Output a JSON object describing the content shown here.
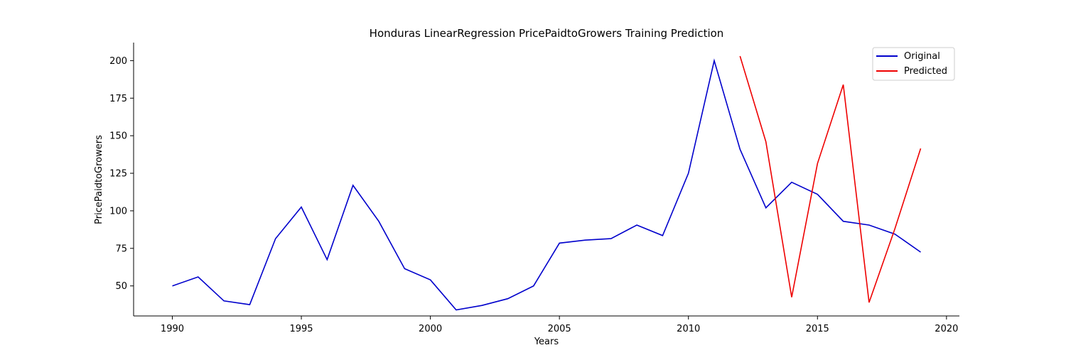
{
  "chart_data": {
    "type": "line",
    "title": "Honduras LinearRegression PricePaidtoGrowers Training Prediction",
    "xlabel": "Years",
    "ylabel": "PricePaidtoGrowers",
    "xlim": [
      1988.5,
      2020.5
    ],
    "ylim": [
      30,
      212
    ],
    "xticks": [
      1990,
      1995,
      2000,
      2005,
      2010,
      2015,
      2020
    ],
    "yticks": [
      50,
      75,
      100,
      125,
      150,
      175,
      200
    ],
    "grid": false,
    "legend_position": "top-right",
    "series": [
      {
        "name": "Original",
        "color": "#0000cc",
        "x": [
          1990,
          1991,
          1992,
          1993,
          1994,
          1995,
          1996,
          1997,
          1998,
          1999,
          2000,
          2001,
          2002,
          2003,
          2004,
          2005,
          2006,
          2007,
          2008,
          2009,
          2010,
          2011,
          2012,
          2013,
          2014,
          2015,
          2016,
          2017,
          2018,
          2019
        ],
        "y": [
          50,
          56,
          40,
          37.5,
          81.5,
          102.5,
          67.5,
          117,
          93,
          61.5,
          54,
          34,
          37,
          41.5,
          50,
          78.5,
          80.5,
          81.5,
          90.5,
          83.5,
          125,
          200,
          141,
          102,
          119,
          111,
          93,
          90.5,
          84.5,
          72.5
        ]
      },
      {
        "name": "Predicted",
        "color": "#ee0000",
        "x": [
          2012,
          2013,
          2014,
          2015,
          2016,
          2017,
          2018,
          2019
        ],
        "y": [
          203,
          146,
          42.5,
          131.5,
          184,
          39,
          88,
          141.5
        ]
      }
    ]
  }
}
